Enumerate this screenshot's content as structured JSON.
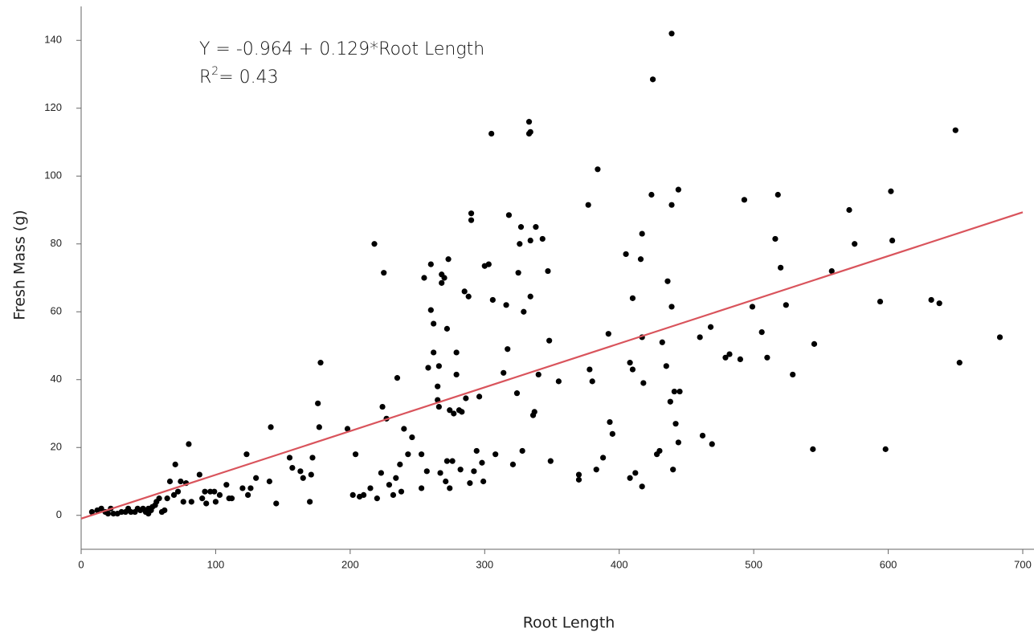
{
  "chart_data": {
    "type": "scatter",
    "x_label": "Root Length",
    "y_label": "Fresh Mass (g)",
    "annotations": [
      "Y = -0.964 + 0.129*Root Length",
      "R",
      "2",
      "= 0.43"
    ],
    "xlim": [
      0,
      700
    ],
    "ylim": [
      -10,
      150
    ],
    "xticks": [
      0,
      100,
      200,
      300,
      400,
      500,
      600,
      700
    ],
    "yticks": [
      0,
      20,
      40,
      60,
      80,
      100,
      120,
      140
    ],
    "series": [
      {
        "color": "#000000",
        "x": [
          8,
          12,
          15,
          18,
          20,
          22,
          24,
          27,
          30,
          33,
          35,
          37,
          40,
          42,
          44,
          46,
          48,
          50,
          50,
          52,
          53,
          55,
          56,
          58,
          60,
          62,
          64,
          66,
          69,
          70,
          72,
          74,
          76,
          78,
          80,
          82,
          88,
          90,
          92,
          93,
          96,
          99,
          100,
          103,
          108,
          110,
          112,
          120,
          123,
          124,
          126,
          130,
          140,
          141,
          145,
          155,
          157,
          163,
          165,
          170,
          171,
          172,
          176,
          177,
          178,
          198,
          202,
          204,
          207,
          210,
          215,
          218,
          220,
          223,
          224,
          225,
          227,
          229,
          232,
          234,
          235,
          237,
          238,
          240,
          243,
          246,
          253,
          253,
          255,
          257,
          258,
          260,
          260,
          262,
          262,
          265,
          265,
          266,
          266,
          267,
          268,
          268,
          270,
          271,
          272,
          272,
          273,
          274,
          274,
          276,
          277,
          279,
          279,
          281,
          282,
          283,
          285,
          286,
          288,
          289,
          290,
          290,
          292,
          294,
          296,
          298,
          299,
          300,
          303,
          305,
          306,
          308,
          314,
          316,
          317,
          318,
          321,
          324,
          325,
          326,
          327,
          328,
          329,
          333,
          333,
          334,
          334,
          334,
          336,
          337,
          338,
          340,
          343,
          347,
          348,
          349,
          355,
          370,
          370,
          377,
          378,
          380,
          383,
          384,
          388,
          392,
          393,
          395,
          405,
          408,
          408,
          410,
          410,
          412,
          416,
          417,
          417,
          417,
          418,
          424,
          425,
          428,
          430,
          432,
          435,
          436,
          438,
          439,
          439,
          439,
          440,
          441,
          442,
          444,
          444,
          445,
          460,
          462,
          468,
          469,
          479,
          482,
          490,
          493,
          499,
          506,
          510,
          516,
          518,
          520,
          524,
          529,
          544,
          545,
          558,
          571,
          575,
          594,
          598,
          602,
          603,
          632,
          638,
          650,
          653,
          683
        ],
        "values": [
          1,
          1.5,
          2,
          1,
          0.5,
          2,
          0.5,
          0.5,
          1,
          1,
          2,
          1,
          1,
          2,
          1.5,
          2,
          1,
          0.5,
          2,
          1.5,
          2.5,
          3,
          4,
          5,
          1,
          1.5,
          5,
          10,
          6,
          15,
          7,
          10,
          4,
          9.5,
          21,
          4,
          12,
          5,
          7,
          3.5,
          7,
          7,
          4,
          6,
          9,
          5,
          5,
          8,
          18,
          6,
          8,
          11,
          10,
          26,
          3.5,
          17,
          14,
          13,
          11,
          4,
          12,
          17,
          33,
          26,
          45,
          25.5,
          6,
          18,
          5.5,
          6,
          8,
          80,
          5,
          12.5,
          32,
          71.5,
          28.5,
          9,
          6,
          11,
          40.5,
          15,
          7,
          25.5,
          18,
          23,
          8,
          18,
          70,
          13,
          43.5,
          74,
          60.5,
          56.5,
          48,
          38,
          34,
          32,
          44,
          12.5,
          68.5,
          71,
          70,
          10,
          16,
          55,
          75.5,
          8,
          31,
          16,
          30,
          48,
          41.5,
          31,
          13.5,
          30.5,
          66,
          34.5,
          64.5,
          9.5,
          89,
          87,
          13,
          19,
          35,
          15.5,
          10,
          73.5,
          74,
          112.5,
          63.5,
          18,
          42,
          62,
          49,
          88.5,
          15,
          36,
          71.5,
          80,
          85,
          19,
          60,
          116,
          112.5,
          64.5,
          81,
          113,
          29.5,
          30.5,
          85,
          41.5,
          81.5,
          72,
          51.5,
          16,
          39.5,
          10.5,
          12,
          91.5,
          43,
          39.5,
          13.5,
          102,
          17,
          53.5,
          27.5,
          24,
          77,
          11,
          45,
          43,
          64,
          12.5,
          75.5,
          52.5,
          83,
          8.5,
          39,
          94.5,
          128.5,
          18,
          19,
          51,
          44,
          69,
          33.5,
          91.5,
          61.5,
          142,
          13.5,
          36.5,
          27,
          21.5,
          96,
          36.5,
          52.5,
          23.5,
          55.5,
          21,
          46.5,
          47.5,
          46,
          93,
          61.5,
          54,
          46.5,
          81.5,
          94.5,
          73,
          62,
          41.5,
          19.5,
          50.5,
          72,
          90,
          80,
          63,
          19.5,
          95.5,
          81,
          63.5,
          62.5,
          113.5,
          45,
          52.5
        ]
      }
    ],
    "fit": {
      "color": "#d9545c",
      "x": [
        0,
        700
      ],
      "values": [
        -0.964,
        89.336
      ]
    }
  }
}
